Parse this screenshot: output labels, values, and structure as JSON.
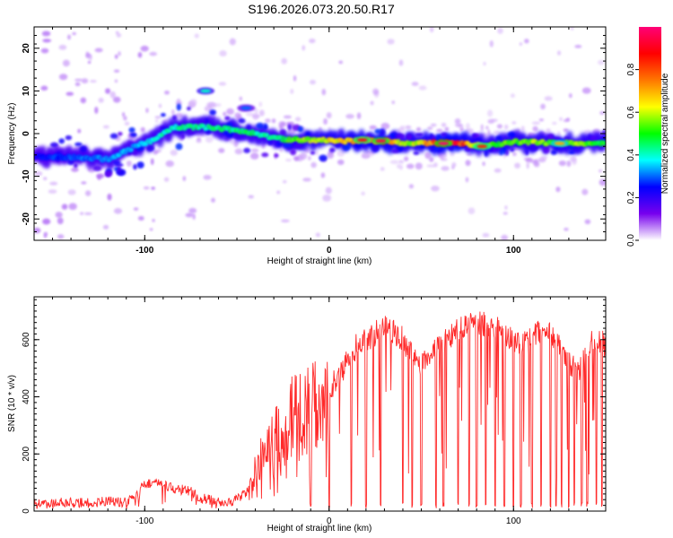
{
  "title": "S196.2026.073.20.50.R17",
  "chart_data": [
    {
      "type": "heatmap",
      "xlabel": "Height of straight line (km)",
      "ylabel": "Frequency (Hz)",
      "xlim": [
        -160,
        150
      ],
      "ylim": [
        -25,
        25
      ],
      "x_ticks": [
        -100,
        0,
        100
      ],
      "y_ticks": [
        -20,
        -10,
        0,
        10,
        20
      ],
      "colorbar": {
        "label": "Normalized spectral amplitude",
        "range": [
          0,
          1
        ],
        "ticks": [
          "0.0",
          "0.2",
          "0.4",
          "0.6",
          "0.8"
        ],
        "tick_values": [
          0.0,
          0.2,
          0.4,
          0.6,
          0.8
        ],
        "stops": [
          "#ffffff",
          "#7700ee",
          "#0000ff",
          "#00ffff",
          "#00ff00",
          "#ffff00",
          "#ff7700",
          "#ff0000",
          "#ff0077"
        ]
      },
      "ridge": {
        "x": [
          -160,
          -140,
          -120,
          -105,
          -95,
          -85,
          -75,
          -65,
          -55,
          -45,
          -40,
          -30,
          -20,
          -10,
          0,
          10,
          20,
          30,
          40,
          50,
          60,
          70,
          80,
          90,
          100,
          110,
          120,
          130,
          140,
          150
        ],
        "freq": [
          -5.5,
          -5.5,
          -6.0,
          -3.0,
          -1.5,
          1.5,
          1.5,
          1.5,
          1.0,
          0.5,
          0.0,
          -1.0,
          -1.5,
          -1.5,
          -1.5,
          -1.8,
          -1.5,
          -1.8,
          -2.2,
          -2.2,
          -2.2,
          -2.2,
          -2.8,
          -2.6,
          -2.0,
          -2.0,
          -2.2,
          -2.2,
          -2.2,
          -2.2
        ],
        "amplitude": [
          0.25,
          0.3,
          0.35,
          0.35,
          0.4,
          0.45,
          0.45,
          0.45,
          0.45,
          0.5,
          0.45,
          0.45,
          0.55,
          0.6,
          0.65,
          0.7,
          0.75,
          0.85,
          0.6,
          0.65,
          0.9,
          0.9,
          0.6,
          0.55,
          0.55,
          0.6,
          0.55,
          0.6,
          0.55,
          0.5
        ]
      },
      "hotspots": [
        {
          "x": -67,
          "freq": 10,
          "amplitude": 0.4
        },
        {
          "x": -45,
          "freq": 6,
          "amplitude": 0.3
        },
        {
          "x": 18,
          "freq": -1.5,
          "amplitude": 0.9
        },
        {
          "x": 28,
          "freq": -1.7,
          "amplitude": 0.95
        },
        {
          "x": 62,
          "freq": -2.3,
          "amplitude": 1.0
        },
        {
          "x": 83,
          "freq": -3.0,
          "amplitude": 0.85
        },
        {
          "x": 125,
          "freq": -2.3,
          "amplitude": 0.7
        }
      ]
    },
    {
      "type": "line",
      "xlabel": "Height of straight line (km)",
      "ylabel": "SNR (10 * v/v)",
      "xlim": [
        -160,
        150
      ],
      "ylim": [
        0,
        750
      ],
      "x_ticks": [
        -100,
        0,
        100
      ],
      "y_ticks": [
        0,
        200,
        400,
        600
      ],
      "color": "#ff2a2a",
      "series": [
        {
          "x": [
            -160,
            -150,
            -140,
            -130,
            -120,
            -110,
            -105,
            -100,
            -95,
            -90,
            -85,
            -80,
            -75,
            -70,
            -65,
            -60,
            -55,
            -50,
            -45,
            -40,
            -35,
            -30,
            -25,
            -20,
            -15,
            -10,
            -5,
            0,
            5,
            10,
            15,
            20,
            25,
            30,
            35,
            40,
            45,
            50,
            55,
            60,
            65,
            70,
            75,
            80,
            85,
            90,
            95,
            100,
            105,
            110,
            115,
            120,
            125,
            130,
            135,
            140,
            145,
            150
          ],
          "values": [
            25,
            28,
            30,
            28,
            35,
            30,
            50,
            95,
            100,
            90,
            80,
            75,
            70,
            45,
            40,
            30,
            35,
            40,
            60,
            140,
            200,
            250,
            270,
            330,
            350,
            370,
            400,
            420,
            480,
            520,
            580,
            600,
            620,
            650,
            630,
            600,
            540,
            500,
            560,
            580,
            600,
            640,
            650,
            660,
            650,
            640,
            620,
            600,
            580,
            600,
            640,
            620,
            590,
            520,
            480,
            580,
            600,
            580
          ],
          "dips": [
            -10,
            0,
            12,
            20,
            28,
            40,
            45,
            50,
            58,
            62,
            70,
            76,
            80,
            85,
            90,
            95,
            100,
            104,
            110,
            115,
            120,
            123,
            126,
            130,
            133,
            137,
            140,
            145,
            148
          ]
        }
      ]
    }
  ]
}
